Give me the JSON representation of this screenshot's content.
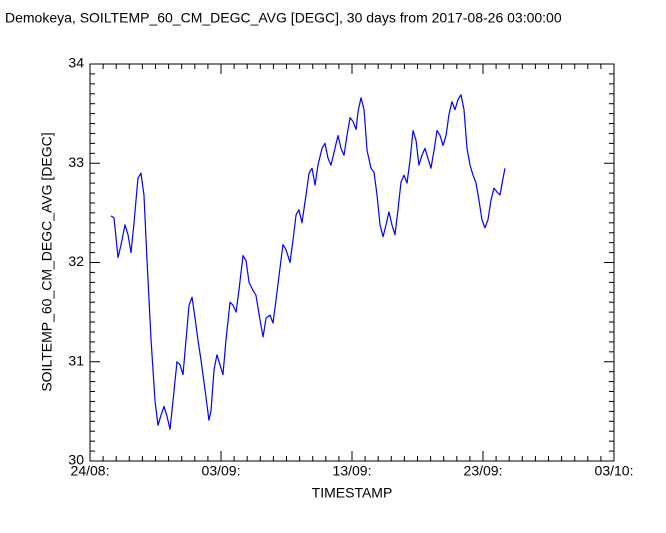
{
  "chart_data": {
    "type": "line",
    "title": "Demokeya, SOILTEMP_60_CM_DEGC_AVG [DEGC], 30 days from  2017-08-26 03:00:00",
    "x_label": "TIMESTAMP",
    "y_label": "SOILTEMP_60_CM_DEGC_AVG [DEGC]",
    "x": [
      1.6,
      1.83,
      2.14,
      2.37,
      2.67,
      2.9,
      3.13,
      3.36,
      3.66,
      3.89,
      4.12,
      4.35,
      4.66,
      4.96,
      5.19,
      5.42,
      5.65,
      5.88,
      6.11,
      6.34,
      6.64,
      6.87,
      7.1,
      7.33,
      7.56,
      7.79,
      8.02,
      8.24,
      8.47,
      8.78,
      9.08,
      9.24,
      9.47,
      9.69,
      9.92,
      10.15,
      10.38,
      10.69,
      10.92,
      11.15,
      11.37,
      11.68,
      11.91,
      12.14,
      12.44,
      12.67,
      12.98,
      13.21,
      13.44,
      13.74,
      13.97,
      14.2,
      14.5,
      14.73,
      14.96,
      15.27,
      15.5,
      15.73,
      15.95,
      16.18,
      16.49,
      16.72,
      16.95,
      17.18,
      17.4,
      17.71,
      17.94,
      18.17,
      18.4,
      18.7,
      18.93,
      19.16,
      19.39,
      19.62,
      19.85,
      20.08,
      20.31,
      20.46,
      20.69,
      20.92,
      21.15,
      21.45,
      21.68,
      21.91,
      22.14,
      22.37,
      22.6,
      22.82,
      23.05,
      23.28,
      23.51,
      23.74,
      23.97,
      24.2,
      24.43,
      24.66,
      24.89,
      25.11,
      25.34,
      25.57,
      25.8,
      26.03,
      26.26,
      26.49,
      26.72,
      26.95,
      27.18,
      27.4,
      27.63,
      27.86,
      28.09,
      28.32,
      28.55,
      28.78,
      29.01,
      29.24,
      29.47,
      29.69,
      29.92,
      30.15,
      30.38,
      30.61,
      30.84,
      31.07,
      31.3,
      31.53,
      31.68
    ],
    "series": [
      {
        "color": "#0000ff",
        "values": [
          32.47,
          32.45,
          32.05,
          32.18,
          32.38,
          32.28,
          32.1,
          32.4,
          32.85,
          32.9,
          32.68,
          32.03,
          31.22,
          30.61,
          30.36,
          30.46,
          30.55,
          30.45,
          30.32,
          30.61,
          31.0,
          30.97,
          30.87,
          31.22,
          31.57,
          31.65,
          31.44,
          31.22,
          31.02,
          30.72,
          30.41,
          30.51,
          30.92,
          31.07,
          30.97,
          30.87,
          31.22,
          31.6,
          31.57,
          31.5,
          31.72,
          32.07,
          32.02,
          31.8,
          31.72,
          31.67,
          31.42,
          31.25,
          31.44,
          31.47,
          31.39,
          31.62,
          31.94,
          32.18,
          32.13,
          32.0,
          32.23,
          32.48,
          32.53,
          32.4,
          32.68,
          32.9,
          32.95,
          32.78,
          32.98,
          33.15,
          33.2,
          33.05,
          32.98,
          33.15,
          33.28,
          33.15,
          33.08,
          33.28,
          33.46,
          33.42,
          33.34,
          33.52,
          33.66,
          33.54,
          33.13,
          32.95,
          32.91,
          32.68,
          32.38,
          32.26,
          32.38,
          32.51,
          32.38,
          32.28,
          32.53,
          32.81,
          32.88,
          32.8,
          33.03,
          33.33,
          33.23,
          32.98,
          33.08,
          33.15,
          33.05,
          32.95,
          33.13,
          33.33,
          33.28,
          33.18,
          33.28,
          33.49,
          33.62,
          33.54,
          33.64,
          33.69,
          33.54,
          33.15,
          32.98,
          32.88,
          32.8,
          32.63,
          32.43,
          32.35,
          32.43,
          32.63,
          32.75,
          32.71,
          32.68,
          32.85,
          32.95
        ]
      }
    ],
    "xlim": [
      0,
      40
    ],
    "xticks": [
      {
        "value": 0,
        "label": "24/08:"
      },
      {
        "value": 10,
        "label": "03/09:"
      },
      {
        "value": 20,
        "label": "13/09:"
      },
      {
        "value": 30,
        "label": "23/09:"
      },
      {
        "value": 40,
        "label": "03/10:"
      }
    ],
    "xminorticks": [
      1,
      2,
      3,
      4,
      5,
      6,
      7,
      8,
      9,
      11,
      12,
      13,
      14,
      15,
      16,
      17,
      18,
      19,
      21,
      22,
      23,
      24,
      25,
      26,
      27,
      28,
      29,
      31,
      32,
      33,
      34,
      35,
      36,
      37,
      38,
      39
    ],
    "ylim": [
      30,
      34
    ],
    "yticks": [
      30,
      31,
      32,
      33,
      34
    ],
    "yminorticks": [
      30.1,
      30.2,
      30.3,
      30.4,
      30.5,
      30.6,
      30.7,
      30.8,
      30.9,
      31.1,
      31.2,
      31.3,
      31.4,
      31.5,
      31.6,
      31.7,
      31.8,
      31.9,
      32.1,
      32.2,
      32.3,
      32.4,
      32.5,
      32.6,
      32.7,
      32.8,
      32.9,
      33.1,
      33.2,
      33.3,
      33.4,
      33.5,
      33.6,
      33.7,
      33.8,
      33.9
    ]
  }
}
